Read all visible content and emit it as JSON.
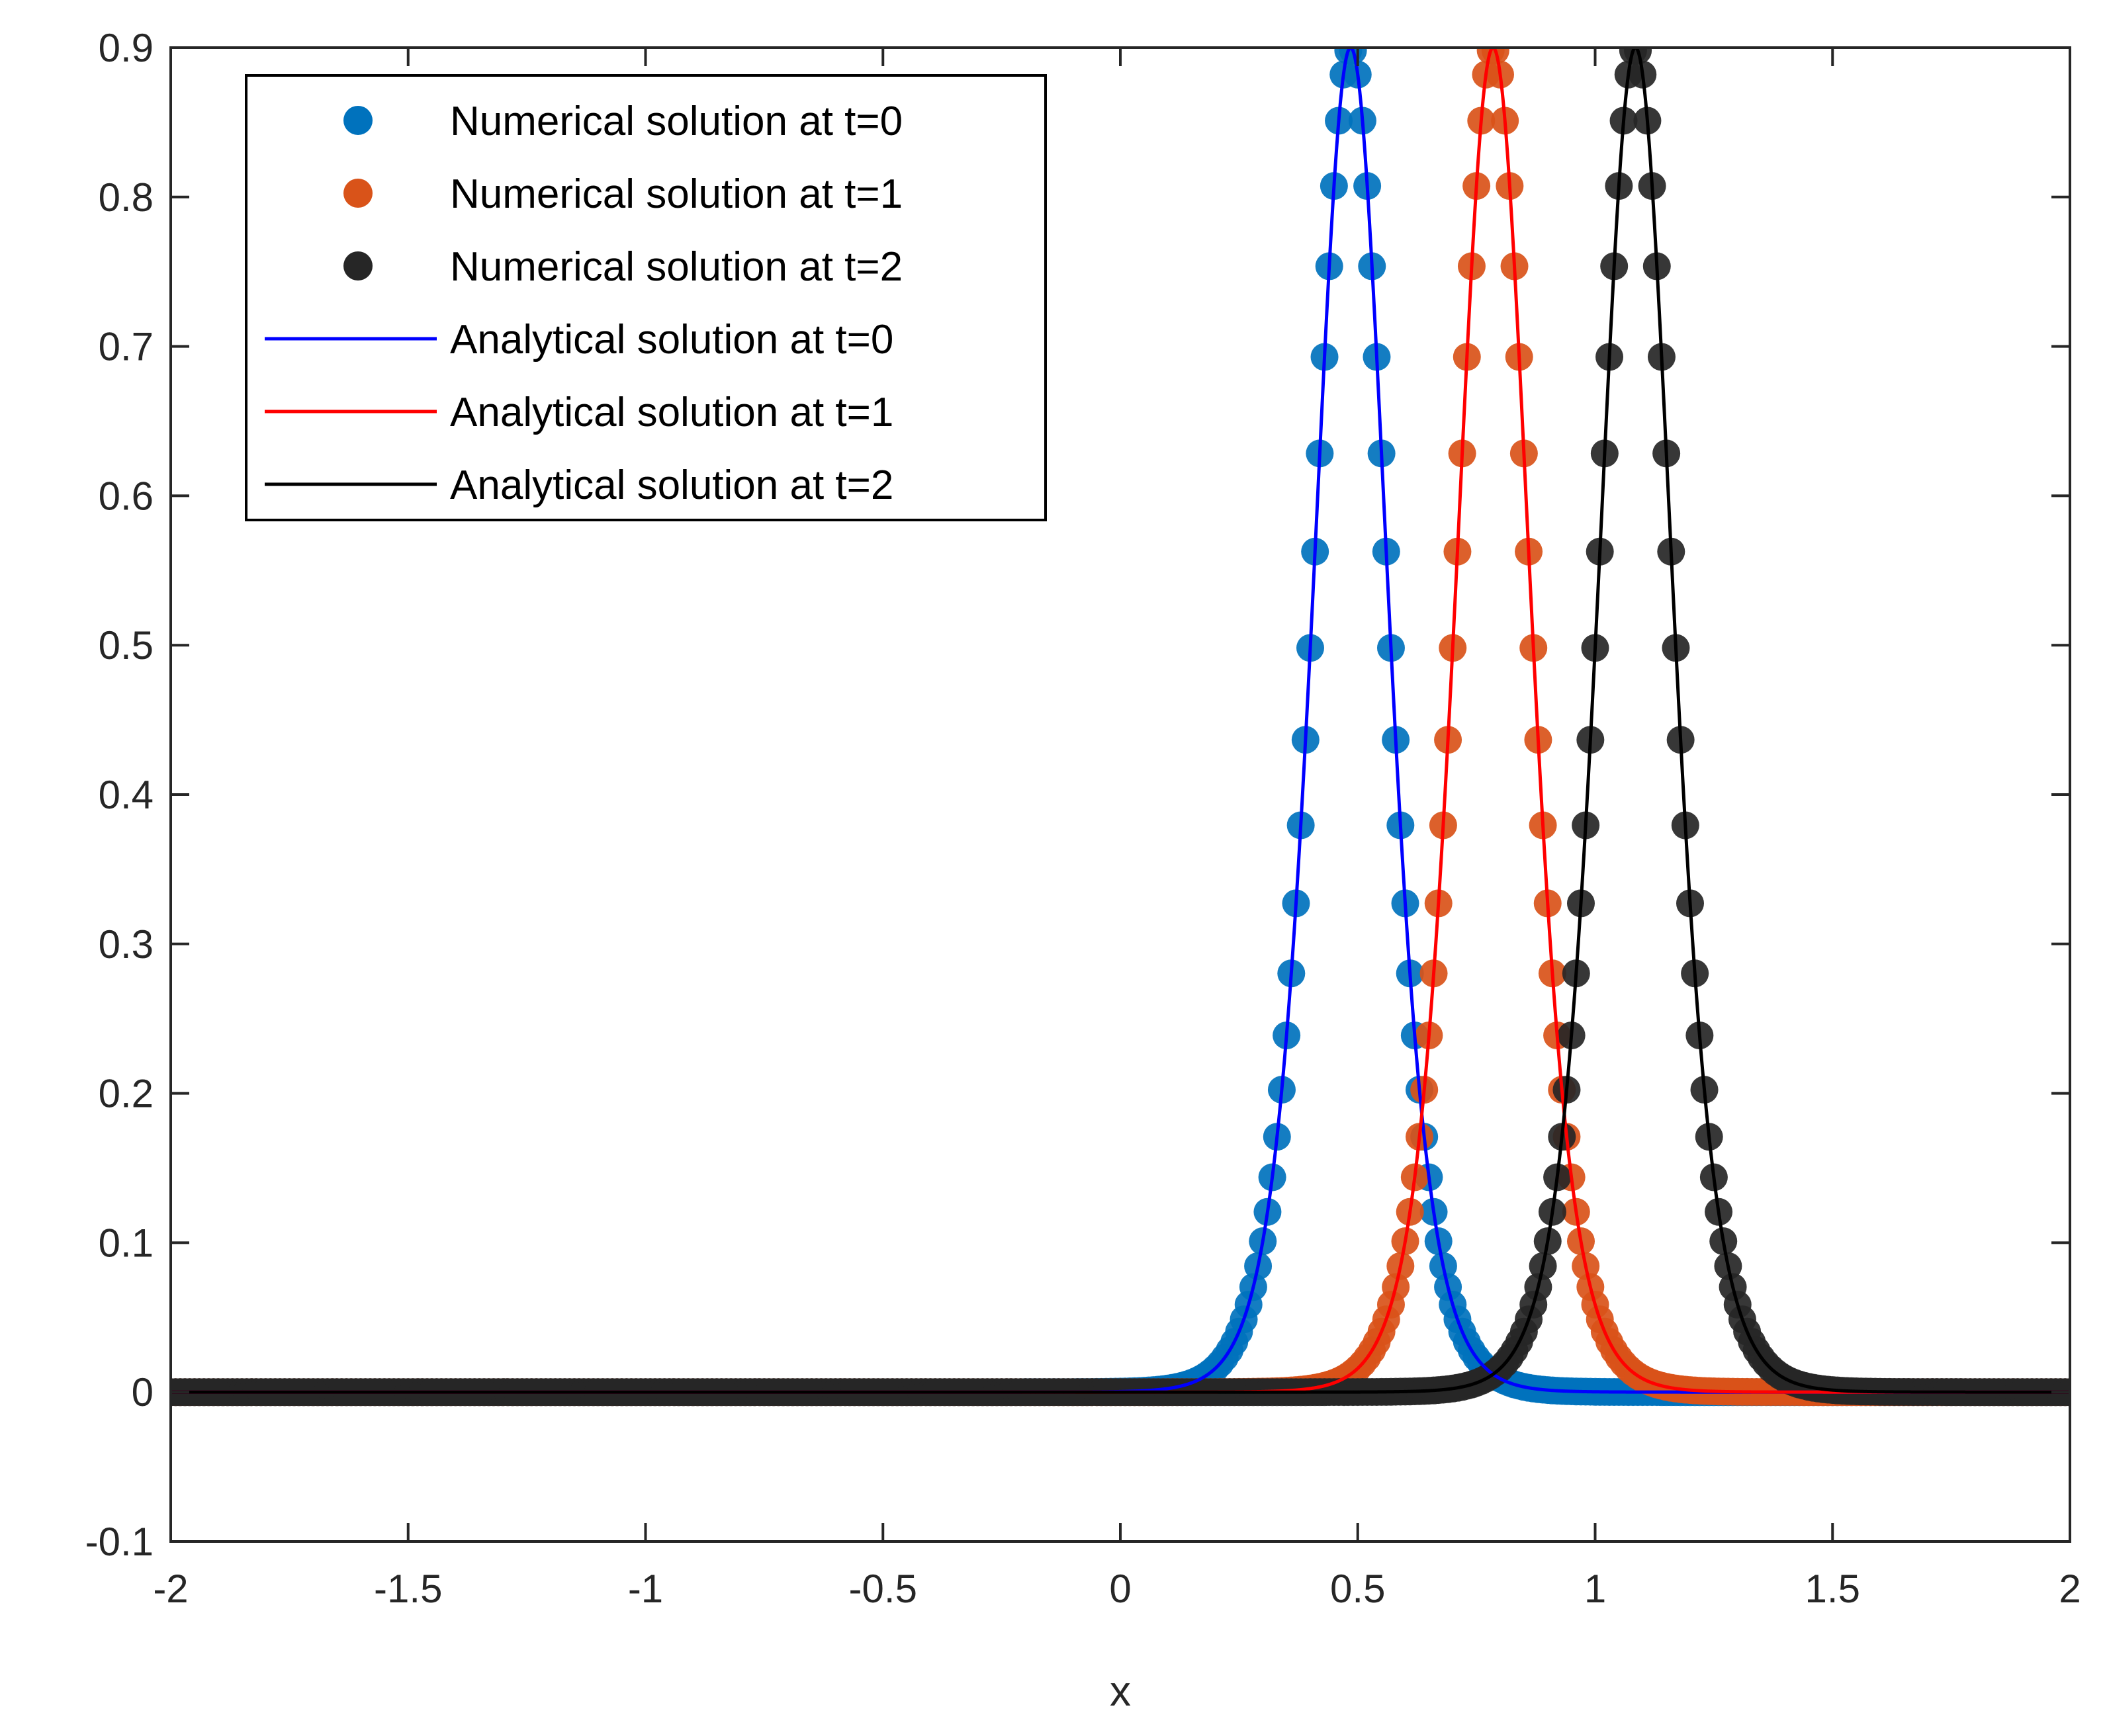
{
  "chart_data": {
    "type": "line",
    "title": "",
    "xlabel": "x",
    "ylabel": "",
    "xlim": [
      -2,
      2
    ],
    "ylim": [
      -0.1,
      0.9
    ],
    "xticks": [
      -2,
      -1.5,
      -1,
      -0.5,
      0,
      0.5,
      1,
      1.5,
      2
    ],
    "xtick_labels": [
      "-2",
      "-1.5",
      "-1",
      "-0.5",
      "0",
      "0.5",
      "1",
      "1.5",
      "2"
    ],
    "yticks": [
      -0.1,
      0,
      0.1,
      0.2,
      0.3,
      0.4,
      0.5,
      0.6,
      0.7,
      0.8,
      0.9
    ],
    "ytick_labels": [
      "-0.1",
      "0",
      "0.1",
      "0.2",
      "0.3",
      "0.4",
      "0.5",
      "0.6",
      "0.7",
      "0.8",
      "0.9"
    ],
    "grid": false,
    "legend_position": "top-left",
    "solution_form": "y = 0.9 * sech(k * (x - center))^2",
    "series": [
      {
        "name": "Numerical solution at t=0",
        "kind": "markers",
        "color": "#0072BD",
        "center": 0.485,
        "amplitude": 0.9,
        "k": 9.5,
        "dx": 0.01,
        "x_range": [
          -2,
          2
        ]
      },
      {
        "name": "Numerical solution at t=1",
        "kind": "markers",
        "color": "#D95319",
        "center": 0.785,
        "amplitude": 0.9,
        "k": 9.5,
        "dx": 0.01,
        "x_range": [
          -2,
          2
        ]
      },
      {
        "name": "Numerical solution at t=2",
        "kind": "markers",
        "color": "#262626",
        "center": 1.085,
        "amplitude": 0.9,
        "k": 9.5,
        "dx": 0.01,
        "x_range": [
          -2,
          2
        ]
      },
      {
        "name": "Analytical solution at t=0",
        "kind": "line",
        "color": "#0000FF",
        "center": 0.485,
        "amplitude": 0.9,
        "k": 9.5
      },
      {
        "name": "Analytical solution at t=1",
        "kind": "line",
        "color": "#FF0000",
        "center": 0.785,
        "amplitude": 0.9,
        "k": 9.5
      },
      {
        "name": "Analytical solution at t=2",
        "kind": "line",
        "color": "#000000",
        "center": 1.085,
        "amplitude": 0.9,
        "k": 9.5
      }
    ]
  }
}
